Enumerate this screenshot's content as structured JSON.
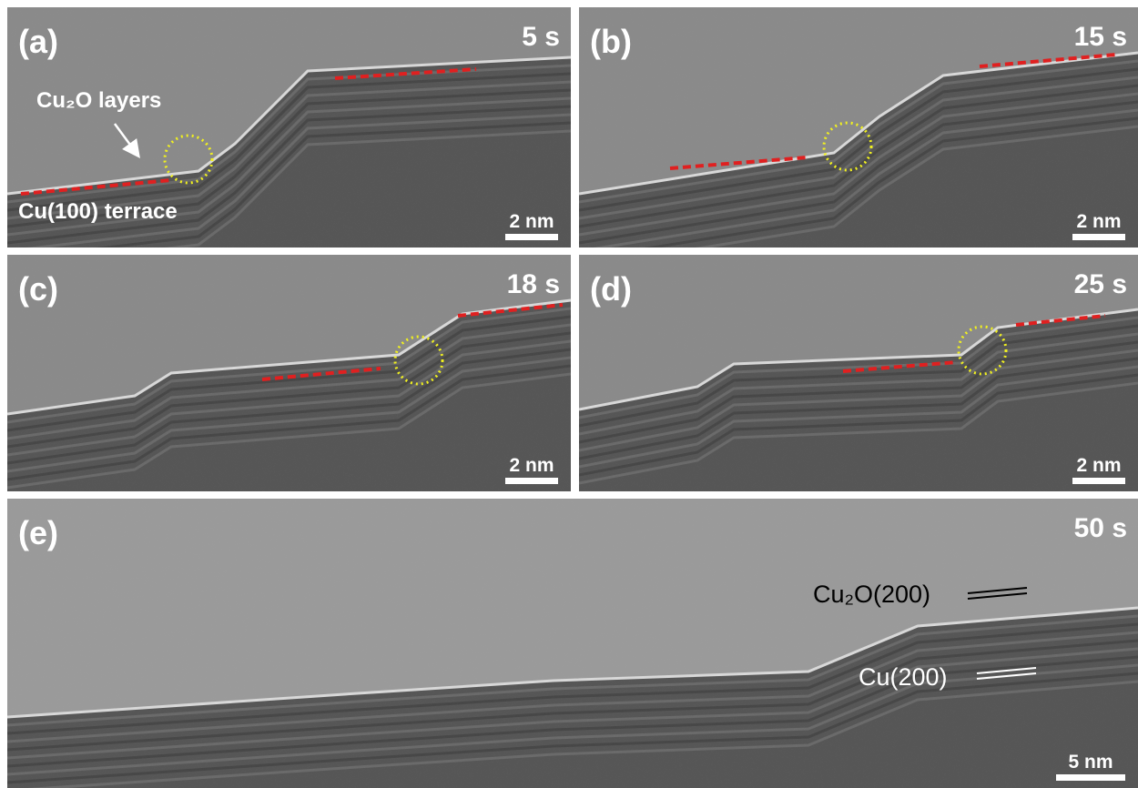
{
  "panels": [
    {
      "label": "(a)",
      "time": "5 s",
      "scale_bar": "2 nm",
      "annotations": [
        "Cu₂O layers",
        "Cu(100) terrace"
      ]
    },
    {
      "label": "(b)",
      "time": "15 s",
      "scale_bar": "2 nm",
      "annotations": []
    },
    {
      "label": "(c)",
      "time": "18 s",
      "scale_bar": "2 nm",
      "annotations": []
    },
    {
      "label": "(d)",
      "time": "25 s",
      "scale_bar": "2 nm",
      "annotations": []
    },
    {
      "label": "(e)",
      "time": "50 s",
      "scale_bar": "5 nm",
      "annotations": [
        "Cu₂O(200)",
        "Cu(200)"
      ]
    }
  ]
}
